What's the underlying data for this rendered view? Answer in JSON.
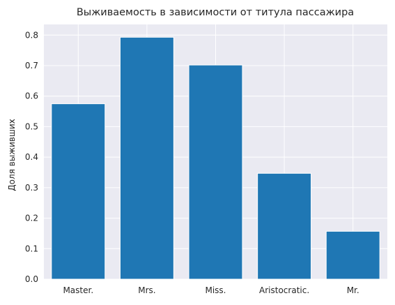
{
  "chart_data": {
    "type": "bar",
    "title": "Выживаемость в зависимости от титула пассажира",
    "xlabel": "",
    "ylabel": "Доля выживших",
    "categories": [
      "Master.",
      "Mrs.",
      "Miss.",
      "Aristocratic.",
      "Mr."
    ],
    "values": [
      0.575,
      0.793,
      0.702,
      0.347,
      0.157
    ],
    "ylim": [
      0,
      0.835
    ],
    "yticks": [
      0.0,
      0.1,
      0.2,
      0.3,
      0.4,
      0.5,
      0.6,
      0.7,
      0.8
    ],
    "ytick_labels": [
      "0.0",
      "0.1",
      "0.2",
      "0.3",
      "0.4",
      "0.5",
      "0.6",
      "0.7",
      "0.8"
    ],
    "grid": true,
    "colors": {
      "bar": "#1f77b4",
      "plot_background": "#eaeaf2",
      "grid": "#ffffff"
    }
  }
}
